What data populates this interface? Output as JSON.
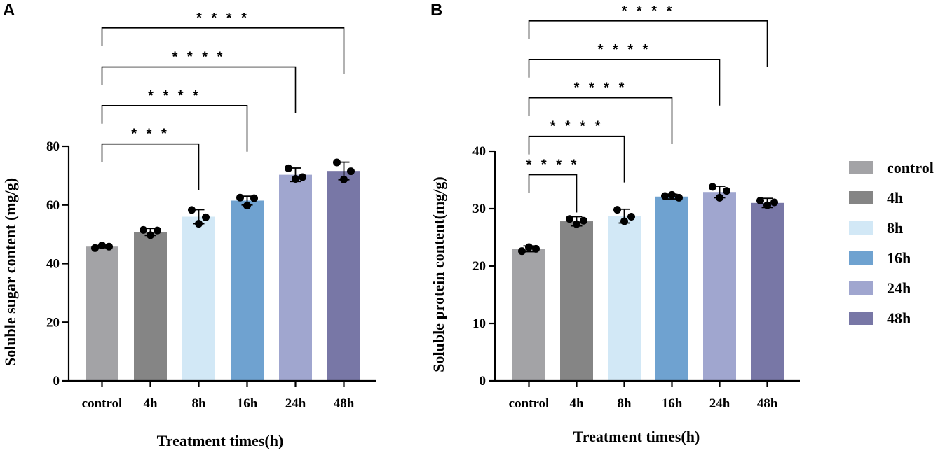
{
  "chart_data": [
    {
      "panel": "A",
      "type": "bar",
      "categories": [
        "control",
        "4h",
        "8h",
        "16h",
        "24h",
        "48h"
      ],
      "values": [
        45.8,
        50.8,
        56.0,
        61.5,
        70.3,
        71.6
      ],
      "errors": [
        0.4,
        1.2,
        2.4,
        1.5,
        2.3,
        3.0
      ],
      "points": [
        [
          45.3,
          46.2,
          45.8
        ],
        [
          51.5,
          49.7,
          51.3
        ],
        [
          58.3,
          53.6,
          55.8
        ],
        [
          62.5,
          59.8,
          62.3
        ],
        [
          72.5,
          68.9,
          69.5
        ],
        [
          74.5,
          68.7,
          71.5
        ]
      ],
      "xlabel": "Treatment times(h)",
      "ylabel": "Soluble sugar content (mg/g)",
      "ylim": [
        0,
        80
      ],
      "yticks": [
        0,
        20,
        40,
        60,
        80
      ],
      "significance": [
        {
          "from": 0,
          "to": 2,
          "label": "* * *",
          "height": 80.8
        },
        {
          "from": 0,
          "to": 3,
          "label": "* * * *",
          "height": 93.9
        },
        {
          "from": 0,
          "to": 4,
          "label": "* * * *",
          "height": 107.1
        },
        {
          "from": 0,
          "to": 5,
          "label": "* * * *",
          "height": 120.4
        }
      ]
    },
    {
      "panel": "B",
      "type": "bar",
      "categories": [
        "control",
        "4h",
        "8h",
        "16h",
        "24h",
        "48h"
      ],
      "values": [
        23.0,
        27.8,
        28.7,
        32.1,
        32.9,
        31.0
      ],
      "errors": [
        0.5,
        0.8,
        1.2,
        0.4,
        1.0,
        0.8
      ],
      "points": [
        [
          22.6,
          23.3,
          23.0
        ],
        [
          28.2,
          27.3,
          27.9
        ],
        [
          29.8,
          27.8,
          28.6
        ],
        [
          32.2,
          32.4,
          31.9
        ],
        [
          33.8,
          31.9,
          33.1
        ],
        [
          31.4,
          30.6,
          31.1
        ]
      ],
      "xlabel": "Treatment times(h)",
      "ylabel": "Soluble protein content(mg/g)",
      "ylim": [
        0,
        40
      ],
      "yticks": [
        0,
        10,
        20,
        30,
        40
      ],
      "significance": [
        {
          "from": 0,
          "to": 1,
          "label": "* * * *",
          "height": 35.9
        },
        {
          "from": 0,
          "to": 2,
          "label": "* * * *",
          "height": 42.6
        },
        {
          "from": 0,
          "to": 3,
          "label": "* * * *",
          "height": 49.3
        },
        {
          "from": 0,
          "to": 4,
          "label": "* * * *",
          "height": 56.0
        },
        {
          "from": 0,
          "to": 5,
          "label": "* * * *",
          "height": 62.7
        }
      ]
    }
  ],
  "legend": {
    "items": [
      {
        "label": "control",
        "color": "#A3A3A6"
      },
      {
        "label": "4h",
        "color": "#858585"
      },
      {
        "label": "8h",
        "color": "#D2E8F6"
      },
      {
        "label": "16h",
        "color": "#6FA2D0"
      },
      {
        "label": "24h",
        "color": "#A0A6CF"
      },
      {
        "label": "48h",
        "color": "#7877A6"
      }
    ]
  },
  "panels": {
    "a_letter": "A",
    "b_letter": "B"
  }
}
